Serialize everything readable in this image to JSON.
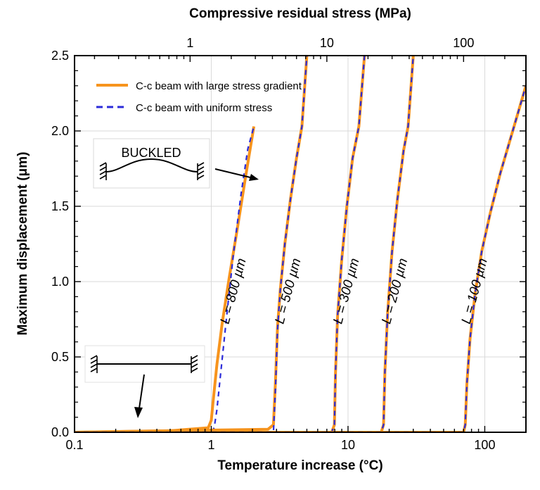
{
  "chart_data": {
    "type": "line",
    "title": "",
    "xlabel": "Temperature increase (°C)",
    "x2label": "Compressive residual stress (MPa)",
    "ylabel": "Maximum displacement (μm)",
    "xscale": "log",
    "xlim": [
      0.1,
      200
    ],
    "ylim": [
      0,
      2.5
    ],
    "x_ticks": [
      0.1,
      1,
      10,
      100
    ],
    "x_tick_labels": [
      "0.1",
      "1",
      "10",
      "100"
    ],
    "y_ticks": [
      0,
      0.5,
      1.0,
      1.5,
      2.0,
      2.5
    ],
    "y_tick_labels": [
      "0.0",
      "0.5",
      "1.0",
      "1.5",
      "2.0",
      "2.5"
    ],
    "top_axis": {
      "ticks_at_temperature": [
        0.7,
        7,
        70
      ],
      "tick_labels": [
        "1",
        "10",
        "100"
      ]
    },
    "legend": {
      "placement": "top-left",
      "entries": [
        {
          "label": "C-c beam with large stress gradient",
          "color": "#F7941D",
          "style": "solid"
        },
        {
          "label": "C-c beam with uniform stress",
          "color": "#2B2BD9",
          "style": "dashed"
        }
      ]
    },
    "series": [
      {
        "name": "L = 800 µm",
        "label": "L = 800 µm",
        "gradient": {
          "x": [
            0.1,
            0.5,
            0.95,
            1.0,
            1.03,
            1.1,
            1.2,
            1.35,
            1.55,
            1.8,
            2.05
          ],
          "y": [
            0,
            0.01,
            0.03,
            0.08,
            0.2,
            0.45,
            0.72,
            1.02,
            1.35,
            1.72,
            2.03
          ]
        },
        "uniform": {
          "x": [
            0.1,
            1.0,
            1.05,
            1.1,
            1.18,
            1.3,
            1.45,
            1.65,
            1.85,
            2.05
          ],
          "y": [
            0,
            0.0,
            0.03,
            0.15,
            0.42,
            0.78,
            1.18,
            1.58,
            1.88,
            2.03
          ]
        }
      },
      {
        "name": "L = 500 µm",
        "label": "L = 500 µm",
        "gradient": {
          "x": [
            0.1,
            2.6,
            2.85,
            2.95,
            3.05,
            3.2,
            3.45,
            3.8,
            4.2,
            4.6,
            5.0
          ],
          "y": [
            0,
            0.02,
            0.05,
            0.35,
            0.7,
            0.95,
            1.25,
            1.55,
            1.82,
            2.03,
            2.5
          ]
        },
        "uniform": {
          "x": [
            0.1,
            2.85,
            2.95,
            3.05,
            3.2,
            3.45,
            3.8,
            4.2,
            4.6,
            5.0
          ],
          "y": [
            0,
            0.0,
            0.3,
            0.68,
            0.95,
            1.25,
            1.55,
            1.82,
            2.03,
            2.5
          ]
        }
      },
      {
        "name": "L = 300 µm",
        "label": "L = 300 µm",
        "gradient": {
          "x": [
            0.1,
            7.6,
            7.95,
            8.1,
            8.4,
            9.0,
            9.8,
            10.8,
            12.0,
            13.2
          ],
          "y": [
            0,
            0.0,
            0.05,
            0.4,
            0.78,
            1.15,
            1.5,
            1.82,
            2.03,
            2.5
          ]
        },
        "uniform": {
          "x": [
            0.1,
            7.6,
            7.95,
            8.1,
            8.4,
            9.0,
            9.8,
            10.8,
            12.0,
            13.2
          ],
          "y": [
            0,
            0.0,
            0.05,
            0.4,
            0.78,
            1.15,
            1.5,
            1.82,
            2.03,
            2.5
          ]
        }
      },
      {
        "name": "L = 200 µm",
        "label": "L = 200 µm",
        "gradient": {
          "x": [
            0.1,
            17.5,
            18.2,
            18.6,
            19.5,
            21.0,
            23.0,
            25.5,
            27.5,
            30.0
          ],
          "y": [
            0,
            0.0,
            0.05,
            0.4,
            0.8,
            1.2,
            1.55,
            1.87,
            2.03,
            2.5
          ]
        },
        "uniform": {
          "x": [
            0.1,
            17.5,
            18.2,
            18.6,
            19.5,
            21.0,
            23.0,
            25.5,
            27.5,
            30.0
          ],
          "y": [
            0,
            0.0,
            0.05,
            0.4,
            0.8,
            1.2,
            1.55,
            1.87,
            2.03,
            2.5
          ]
        }
      },
      {
        "name": "L = 100 µm",
        "label": "L = 100 µm",
        "gradient": {
          "x": [
            0.1,
            70,
            72,
            74,
            78,
            85,
            95,
            110,
            130,
            160,
            200
          ],
          "y": [
            0,
            0.0,
            0.05,
            0.32,
            0.62,
            0.92,
            1.2,
            1.46,
            1.72,
            2.0,
            2.3
          ]
        },
        "uniform": {
          "x": [
            0.1,
            70,
            72,
            74,
            78,
            85,
            95,
            110,
            130,
            160,
            200
          ],
          "y": [
            0,
            0.0,
            0.05,
            0.32,
            0.62,
            0.92,
            1.2,
            1.46,
            1.72,
            2.0,
            2.3
          ]
        }
      }
    ],
    "annotations": [
      {
        "text": "BUCKLED"
      }
    ]
  }
}
